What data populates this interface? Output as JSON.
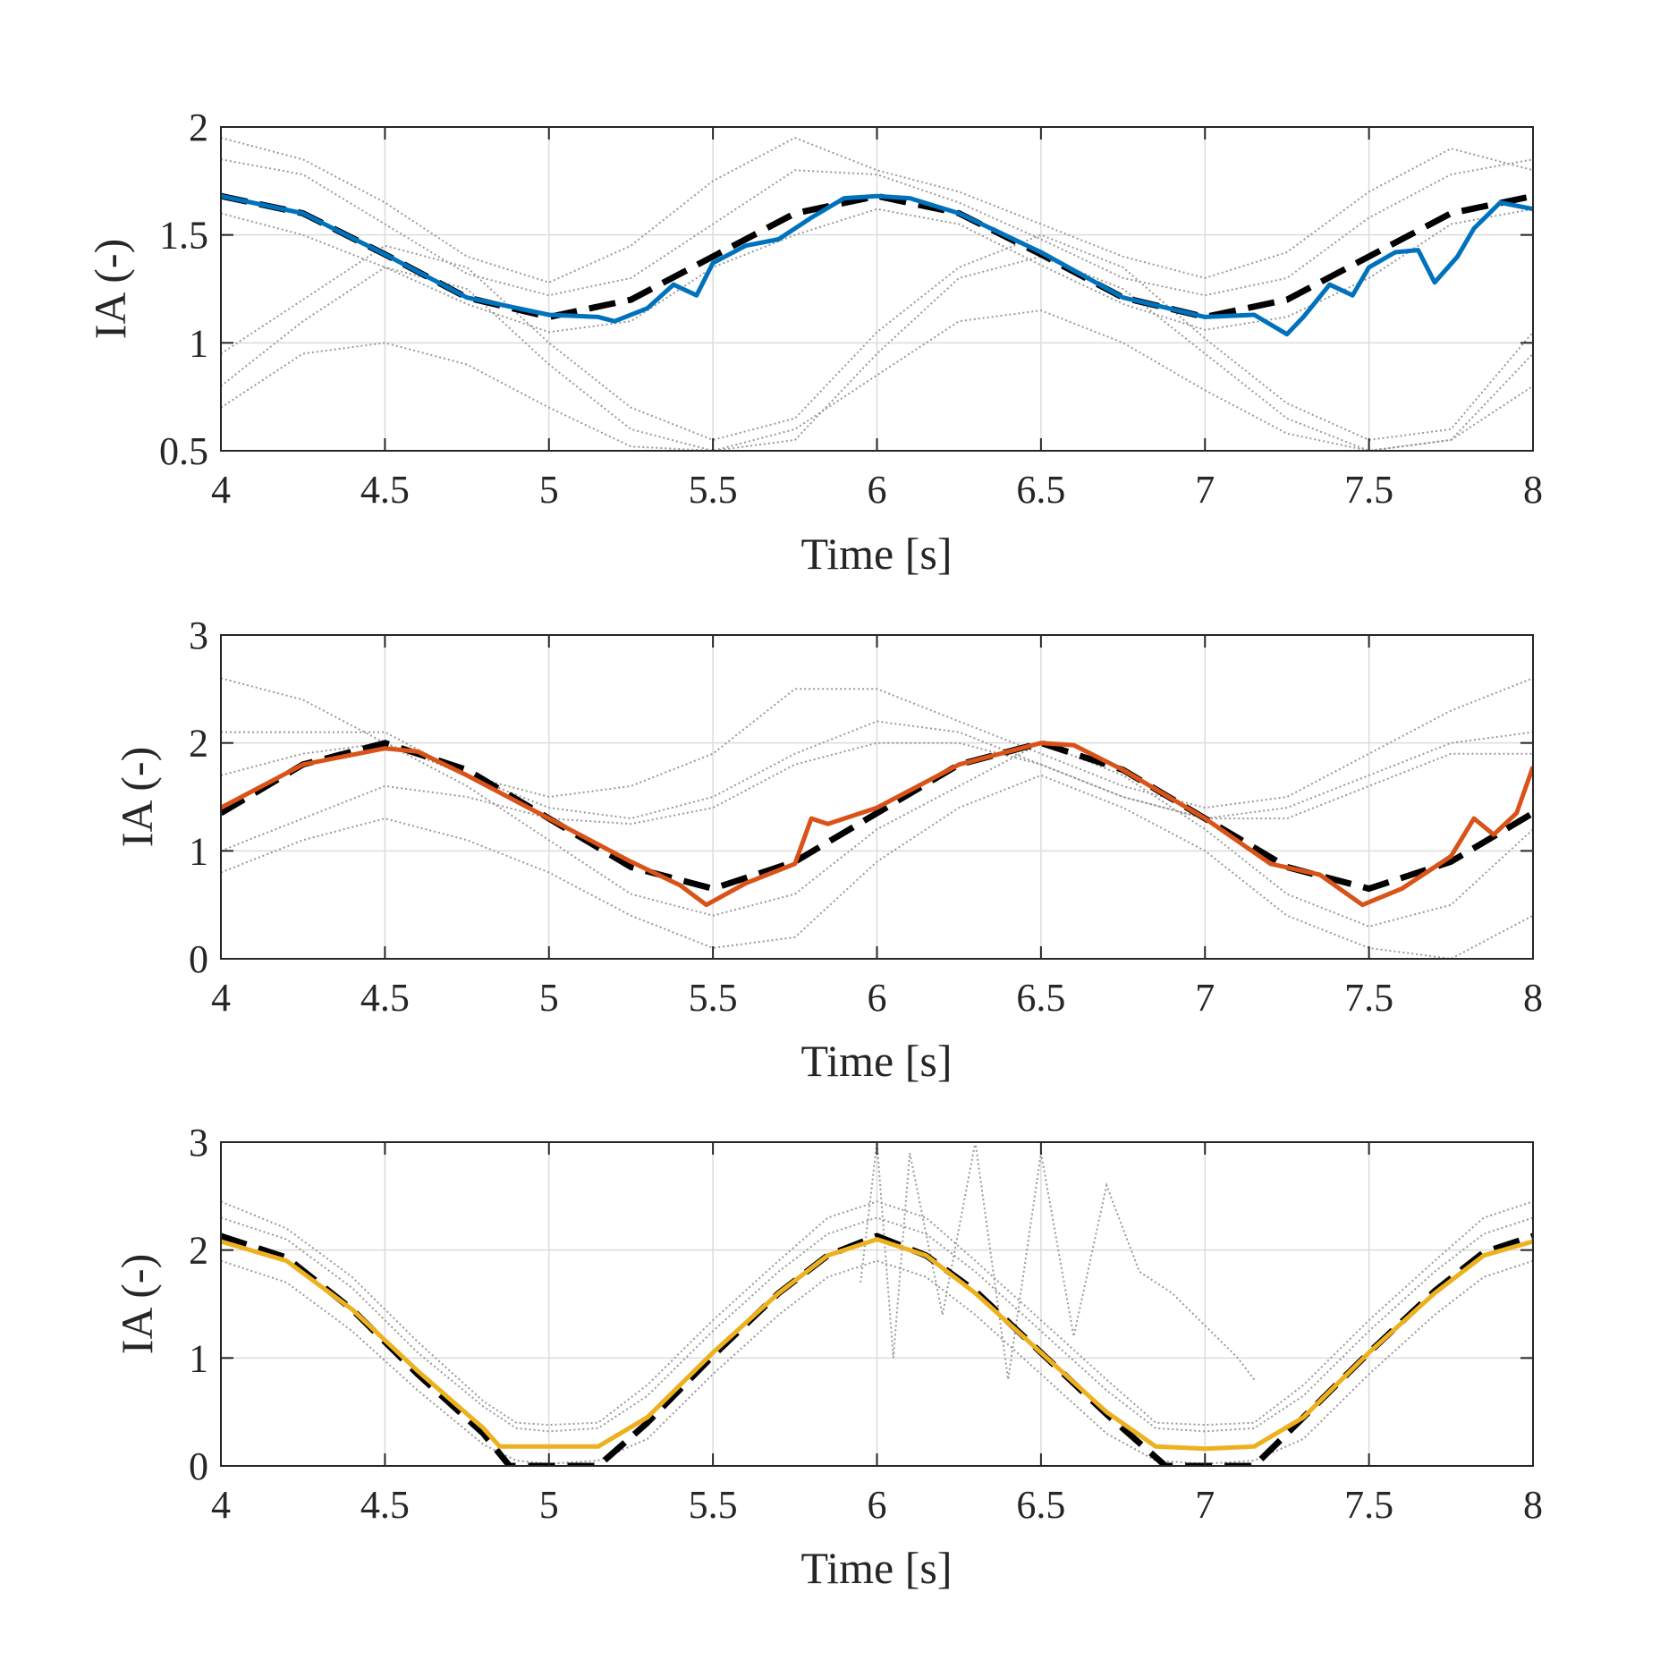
{
  "colors": {
    "background": "#ffffff",
    "axes": "#262626",
    "grid": "#dcdcdc",
    "trials": "#9a9a9a",
    "reference": "#000000"
  },
  "chart_data": [
    {
      "type": "line",
      "xlabel": "Time [s]",
      "ylabel": "IA (-)",
      "xlim": [
        4,
        8
      ],
      "ylim": [
        0.5,
        2
      ],
      "xticks": [
        4,
        4.5,
        5,
        5.5,
        6,
        6.5,
        7,
        7.5,
        8
      ],
      "xtick_labels": [
        "4",
        "4.5",
        "5",
        "5.5",
        "6",
        "6.5",
        "7",
        "7.5",
        "8"
      ],
      "yticks": [
        0.5,
        1,
        1.5,
        2
      ],
      "ytick_labels": [
        "0.5",
        "1",
        "1.5",
        "2"
      ],
      "grid": true,
      "reference": {
        "style": "dashed",
        "color": "#000000",
        "x": [
          4.0,
          4.25,
          4.5,
          4.75,
          5.0,
          5.25,
          5.5,
          5.75,
          6.0,
          6.25,
          6.5,
          6.75,
          7.0,
          7.25,
          7.5,
          7.75,
          8.0
        ],
        "y": [
          1.68,
          1.6,
          1.41,
          1.21,
          1.12,
          1.2,
          1.4,
          1.6,
          1.68,
          1.6,
          1.41,
          1.21,
          1.12,
          1.2,
          1.4,
          1.6,
          1.68
        ]
      },
      "highlight": {
        "color": "#0072BD",
        "x": [
          4.0,
          4.25,
          4.5,
          4.75,
          5.0,
          5.15,
          5.2,
          5.3,
          5.38,
          5.45,
          5.5,
          5.6,
          5.7,
          5.8,
          5.9,
          6.0,
          6.1,
          6.25,
          6.5,
          6.75,
          7.0,
          7.15,
          7.25,
          7.3,
          7.38,
          7.45,
          7.5,
          7.58,
          7.65,
          7.7,
          7.77,
          7.82,
          7.9,
          8.0
        ],
        "y": [
          1.68,
          1.6,
          1.41,
          1.21,
          1.13,
          1.12,
          1.1,
          1.16,
          1.27,
          1.22,
          1.37,
          1.45,
          1.48,
          1.58,
          1.67,
          1.68,
          1.67,
          1.6,
          1.42,
          1.21,
          1.12,
          1.13,
          1.04,
          1.12,
          1.27,
          1.22,
          1.35,
          1.42,
          1.43,
          1.28,
          1.4,
          1.53,
          1.65,
          1.62
        ]
      },
      "trials": [
        {
          "x": [
            4.0,
            4.25,
            4.5,
            4.75,
            5.0,
            5.25,
            5.5,
            5.75,
            6.0,
            6.25,
            6.5,
            6.75,
            7.0,
            7.25,
            7.5,
            7.75,
            8.0
          ],
          "y": [
            1.85,
            1.78,
            1.55,
            1.32,
            1.22,
            1.3,
            1.55,
            1.8,
            1.78,
            1.65,
            1.48,
            1.3,
            1.22,
            1.3,
            1.58,
            1.78,
            1.85
          ]
        },
        {
          "x": [
            4.0,
            4.25,
            4.5,
            4.75,
            5.0,
            5.25,
            5.5,
            5.75,
            6.0,
            6.25,
            6.5,
            6.75,
            7.0,
            7.25,
            7.5,
            7.75,
            8.0
          ],
          "y": [
            1.6,
            1.5,
            1.35,
            1.18,
            1.05,
            1.1,
            1.35,
            1.5,
            1.62,
            1.55,
            1.36,
            1.18,
            1.06,
            1.12,
            1.3,
            1.55,
            1.62
          ]
        },
        {
          "x": [
            4.0,
            4.25,
            4.5,
            4.75,
            5.0,
            5.25,
            5.5,
            5.75,
            6.0,
            6.25,
            6.5,
            6.75,
            7.0,
            7.25,
            7.5,
            7.75,
            8.0
          ],
          "y": [
            0.8,
            1.1,
            1.35,
            1.25,
            0.9,
            0.6,
            0.5,
            0.55,
            0.95,
            1.3,
            1.4,
            1.25,
            0.95,
            0.65,
            0.5,
            0.55,
            0.95
          ]
        },
        {
          "x": [
            4.0,
            4.25,
            4.5,
            4.75,
            5.0,
            5.25,
            5.5,
            5.75,
            6.0,
            6.25,
            6.5,
            6.75,
            7.0,
            7.25,
            7.5,
            7.75,
            8.0
          ],
          "y": [
            0.95,
            1.2,
            1.45,
            1.35,
            1.0,
            0.7,
            0.55,
            0.65,
            1.05,
            1.35,
            1.5,
            1.35,
            1.02,
            0.72,
            0.55,
            0.6,
            1.05
          ]
        },
        {
          "x": [
            4.0,
            4.25,
            4.5,
            4.75,
            5.0,
            5.25,
            5.5,
            5.75,
            6.0,
            6.25,
            6.5,
            6.75,
            7.0,
            7.25,
            7.5,
            7.75,
            8.0
          ],
          "y": [
            0.7,
            0.95,
            1.0,
            0.9,
            0.7,
            0.52,
            0.5,
            0.6,
            0.85,
            1.1,
            1.15,
            1.0,
            0.78,
            0.58,
            0.5,
            0.55,
            0.8
          ]
        },
        {
          "x": [
            4.0,
            4.25,
            4.5,
            4.75,
            5.0,
            5.25,
            5.5,
            5.75,
            6.0,
            6.25,
            6.5,
            6.75,
            7.0,
            7.25,
            7.5,
            7.75,
            8.0
          ],
          "y": [
            1.95,
            1.85,
            1.65,
            1.4,
            1.28,
            1.45,
            1.75,
            1.95,
            1.8,
            1.7,
            1.55,
            1.4,
            1.3,
            1.42,
            1.7,
            1.9,
            1.8
          ]
        }
      ]
    },
    {
      "type": "line",
      "xlabel": "Time [s]",
      "ylabel": "IA (-)",
      "xlim": [
        4,
        8
      ],
      "ylim": [
        0,
        3
      ],
      "xticks": [
        4,
        4.5,
        5,
        5.5,
        6,
        6.5,
        7,
        7.5,
        8
      ],
      "xtick_labels": [
        "4",
        "4.5",
        "5",
        "5.5",
        "6",
        "6.5",
        "7",
        "7.5",
        "8"
      ],
      "yticks": [
        0,
        1,
        2,
        3
      ],
      "ytick_labels": [
        "0",
        "1",
        "2",
        "3"
      ],
      "grid": true,
      "reference": {
        "style": "dashed",
        "color": "#000000",
        "x": [
          4.0,
          4.25,
          4.5,
          4.75,
          5.0,
          5.25,
          5.5,
          5.75,
          6.0,
          6.25,
          6.5,
          6.75,
          7.0,
          7.25,
          7.5,
          7.75,
          8.0
        ],
        "y": [
          1.35,
          1.8,
          2.0,
          1.75,
          1.3,
          0.85,
          0.65,
          0.9,
          1.35,
          1.8,
          2.0,
          1.75,
          1.3,
          0.85,
          0.65,
          0.9,
          1.35
        ]
      },
      "highlight": {
        "color": "#D95319",
        "x": [
          4.0,
          4.25,
          4.5,
          4.6,
          4.75,
          5.0,
          5.25,
          5.4,
          5.48,
          5.6,
          5.75,
          5.8,
          5.85,
          6.0,
          6.25,
          6.5,
          6.6,
          6.75,
          7.0,
          7.2,
          7.35,
          7.48,
          7.6,
          7.75,
          7.82,
          7.88,
          7.95,
          8.0
        ],
        "y": [
          1.4,
          1.8,
          1.95,
          1.92,
          1.7,
          1.3,
          0.9,
          0.68,
          0.5,
          0.7,
          0.88,
          1.3,
          1.25,
          1.4,
          1.8,
          2.0,
          1.98,
          1.75,
          1.3,
          0.88,
          0.78,
          0.5,
          0.65,
          0.95,
          1.3,
          1.15,
          1.35,
          1.78
        ]
      },
      "trials": [
        {
          "x": [
            4.0,
            4.25,
            4.5,
            4.75,
            5.0,
            5.25,
            5.5,
            5.75,
            6.0,
            6.25,
            6.5,
            6.75,
            7.0,
            7.25,
            7.5,
            7.75,
            8.0
          ],
          "y": [
            2.6,
            2.4,
            2.0,
            1.7,
            1.5,
            1.6,
            1.9,
            2.5,
            2.5,
            2.2,
            1.9,
            1.6,
            1.4,
            1.5,
            1.9,
            2.3,
            2.6
          ]
        },
        {
          "x": [
            4.0,
            4.25,
            4.5,
            4.75,
            5.0,
            5.25,
            5.5,
            5.75,
            6.0,
            6.25,
            6.5,
            6.75,
            7.0,
            7.25,
            7.5,
            7.75,
            8.0
          ],
          "y": [
            2.1,
            2.1,
            2.1,
            1.7,
            1.4,
            1.3,
            1.5,
            1.9,
            2.2,
            2.1,
            1.8,
            1.5,
            1.3,
            1.4,
            1.7,
            2.0,
            2.1
          ]
        },
        {
          "x": [
            4.0,
            4.25,
            4.5,
            4.75,
            5.0,
            5.25,
            5.5,
            5.75,
            6.0,
            6.25,
            6.5,
            6.75,
            7.0,
            7.25,
            7.5,
            7.75,
            8.0
          ],
          "y": [
            1.0,
            1.3,
            1.6,
            1.5,
            1.3,
            1.25,
            1.4,
            1.8,
            2.0,
            2.0,
            1.8,
            1.5,
            1.3,
            1.3,
            1.6,
            1.9,
            1.9
          ]
        },
        {
          "x": [
            4.0,
            4.25,
            4.5,
            4.75,
            5.0,
            5.25,
            5.5,
            5.75,
            6.0,
            6.25,
            6.5,
            6.75,
            7.0,
            7.25,
            7.5,
            7.75,
            8.0
          ],
          "y": [
            1.7,
            1.9,
            2.0,
            1.6,
            1.1,
            0.6,
            0.4,
            0.6,
            1.2,
            1.6,
            2.0,
            1.7,
            1.2,
            0.6,
            0.3,
            0.5,
            1.2
          ]
        },
        {
          "x": [
            4.0,
            4.25,
            4.5,
            4.75,
            5.0,
            5.25,
            5.5,
            5.75,
            6.0,
            6.25,
            6.5,
            6.75,
            7.0,
            7.25,
            7.5,
            7.75,
            8.0
          ],
          "y": [
            0.8,
            1.1,
            1.3,
            1.1,
            0.8,
            0.4,
            0.1,
            0.2,
            0.9,
            1.4,
            1.7,
            1.4,
            1.0,
            0.4,
            0.1,
            0.0,
            0.4
          ]
        }
      ]
    },
    {
      "type": "line",
      "xlabel": "Time [s]",
      "ylabel": "IA (-)",
      "xlim": [
        4,
        8
      ],
      "ylim": [
        0,
        3
      ],
      "xticks": [
        4,
        4.5,
        5,
        5.5,
        6,
        6.5,
        7,
        7.5,
        8
      ],
      "xtick_labels": [
        "4",
        "4.5",
        "5",
        "5.5",
        "6",
        "6.5",
        "7",
        "7.5",
        "8"
      ],
      "yticks": [
        0,
        1,
        2,
        3
      ],
      "ytick_labels": [
        "0",
        "1",
        "2",
        "3"
      ],
      "grid": true,
      "reference": {
        "style": "dashed",
        "color": "#000000",
        "x": [
          4.0,
          4.2,
          4.4,
          4.6,
          4.8,
          4.88,
          5.15,
          5.3,
          5.5,
          5.7,
          5.85,
          6.0,
          6.15,
          6.3,
          6.5,
          6.7,
          6.88,
          7.15,
          7.3,
          7.5,
          7.7,
          7.85,
          8.0
        ],
        "y": [
          2.13,
          1.93,
          1.45,
          0.85,
          0.3,
          0.0,
          0.0,
          0.4,
          1.02,
          1.6,
          1.95,
          2.13,
          1.95,
          1.62,
          1.05,
          0.48,
          0.0,
          0.0,
          0.45,
          1.05,
          1.62,
          1.98,
          2.13
        ]
      },
      "highlight": {
        "color": "#EDB120",
        "x": [
          4.0,
          4.2,
          4.4,
          4.6,
          4.8,
          4.85,
          5.0,
          5.15,
          5.3,
          5.5,
          5.7,
          5.85,
          6.0,
          6.15,
          6.3,
          6.5,
          6.7,
          6.85,
          7.0,
          7.15,
          7.3,
          7.5,
          7.7,
          7.85,
          8.0
        ],
        "y": [
          2.08,
          1.9,
          1.45,
          0.88,
          0.35,
          0.18,
          0.18,
          0.18,
          0.45,
          1.05,
          1.6,
          1.95,
          2.1,
          1.95,
          1.6,
          1.05,
          0.5,
          0.18,
          0.16,
          0.18,
          0.45,
          1.05,
          1.6,
          1.95,
          2.08
        ]
      },
      "trials": [
        {
          "x": [
            4.0,
            4.2,
            4.4,
            4.6,
            4.8,
            4.9,
            5.0,
            5.15,
            5.3,
            5.5,
            5.7,
            5.85,
            6.0,
            6.15,
            6.3,
            6.5,
            6.7,
            6.85,
            7.0,
            7.15,
            7.3,
            7.5,
            7.7,
            7.85,
            8.0
          ],
          "y": [
            2.3,
            2.1,
            1.65,
            1.05,
            0.55,
            0.35,
            0.32,
            0.35,
            0.65,
            1.25,
            1.8,
            2.15,
            2.3,
            2.15,
            1.8,
            1.25,
            0.7,
            0.35,
            0.32,
            0.35,
            0.65,
            1.25,
            1.8,
            2.15,
            2.3
          ]
        },
        {
          "x": [
            4.0,
            4.2,
            4.4,
            4.6,
            4.8,
            4.9,
            5.0,
            5.15,
            5.3,
            5.5,
            5.7,
            5.85,
            6.0,
            6.15,
            6.3,
            6.5,
            6.7,
            6.85,
            7.0,
            7.15,
            7.3,
            7.5,
            7.7,
            7.85,
            8.0
          ],
          "y": [
            1.9,
            1.7,
            1.25,
            0.7,
            0.2,
            0.05,
            0.02,
            0.05,
            0.25,
            0.85,
            1.4,
            1.75,
            1.9,
            1.75,
            1.4,
            0.85,
            0.3,
            0.05,
            0.02,
            0.05,
            0.25,
            0.85,
            1.4,
            1.75,
            1.9
          ]
        },
        {
          "x": [
            4.0,
            4.2,
            4.4,
            4.6,
            4.8,
            4.9,
            5.0,
            5.15,
            5.3,
            5.5,
            5.7,
            5.85,
            6.0,
            6.15,
            6.3,
            6.5,
            6.7,
            6.85,
            7.0,
            7.15,
            7.3,
            7.5,
            7.7,
            7.85,
            8.0
          ],
          "y": [
            2.45,
            2.2,
            1.75,
            1.15,
            0.6,
            0.4,
            0.38,
            0.4,
            0.75,
            1.35,
            1.9,
            2.3,
            2.45,
            2.3,
            1.9,
            1.35,
            0.8,
            0.4,
            0.38,
            0.4,
            0.75,
            1.35,
            1.9,
            2.3,
            2.45
          ]
        },
        {
          "x": [
            5.95,
            6.0,
            6.05,
            6.1,
            6.2,
            6.3,
            6.4,
            6.5,
            6.6,
            6.7,
            6.8,
            6.9,
            7.0,
            7.1,
            7.15
          ],
          "y": [
            1.7,
            3.0,
            1.0,
            2.9,
            1.4,
            3.0,
            0.8,
            2.9,
            1.2,
            2.6,
            1.8,
            1.6,
            1.3,
            1.0,
            0.8
          ]
        }
      ]
    }
  ]
}
